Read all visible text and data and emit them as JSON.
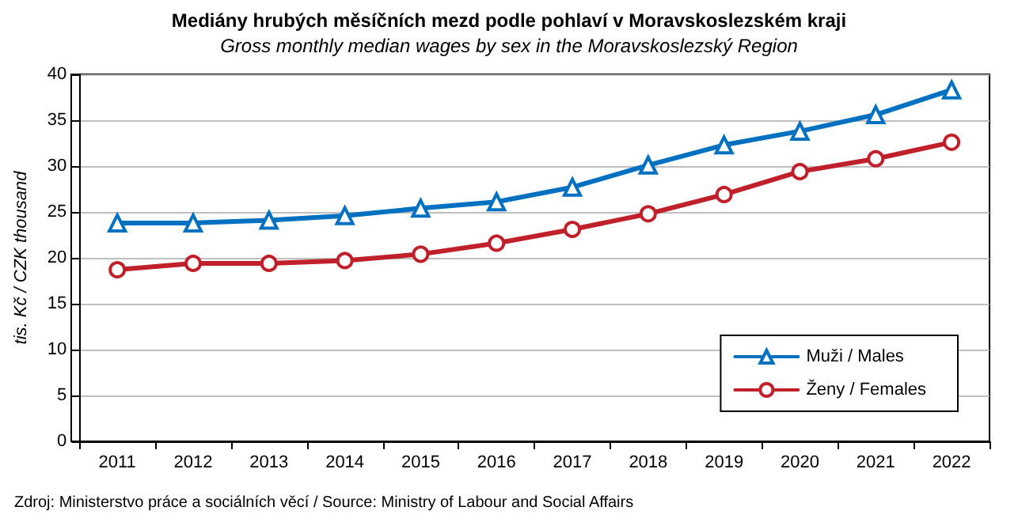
{
  "chart_data": {
    "type": "line",
    "title": "Mediány hrubých měsíčních mezd podle pohlaví v Moravskoslezském kraji",
    "subtitle": "Gross monthly median wages by sex in the Moravskoslezský Region",
    "ylabel": "tis. Kč / CZK thousand",
    "annotations": [
      "Zdroj: Ministerstvo práce a sociálních věcí / Source: Ministry of Labour and Social Affairs"
    ],
    "categories": [
      "2011",
      "2012",
      "2013",
      "2014",
      "2015",
      "2016",
      "2017",
      "2018",
      "2019",
      "2020",
      "2021",
      "2022"
    ],
    "series": [
      {
        "name": "Muži / Males",
        "color": "#0070c0",
        "marker": "triangle",
        "values": [
          23.8,
          23.8,
          24.1,
          24.6,
          25.4,
          26.1,
          27.7,
          30.1,
          32.3,
          33.8,
          35.6,
          38.3
        ]
      },
      {
        "name": "Ženy / Females",
        "color": "#c0202a",
        "marker": "circle",
        "values": [
          18.7,
          19.4,
          19.4,
          19.7,
          20.4,
          21.6,
          23.1,
          24.8,
          26.9,
          29.4,
          30.8,
          32.6
        ]
      }
    ],
    "ylim": [
      0,
      40
    ],
    "yticks": [
      0,
      5,
      10,
      15,
      20,
      25,
      30,
      35,
      40
    ],
    "grid": "y",
    "legend": "bottom right",
    "line_style": "solid"
  }
}
